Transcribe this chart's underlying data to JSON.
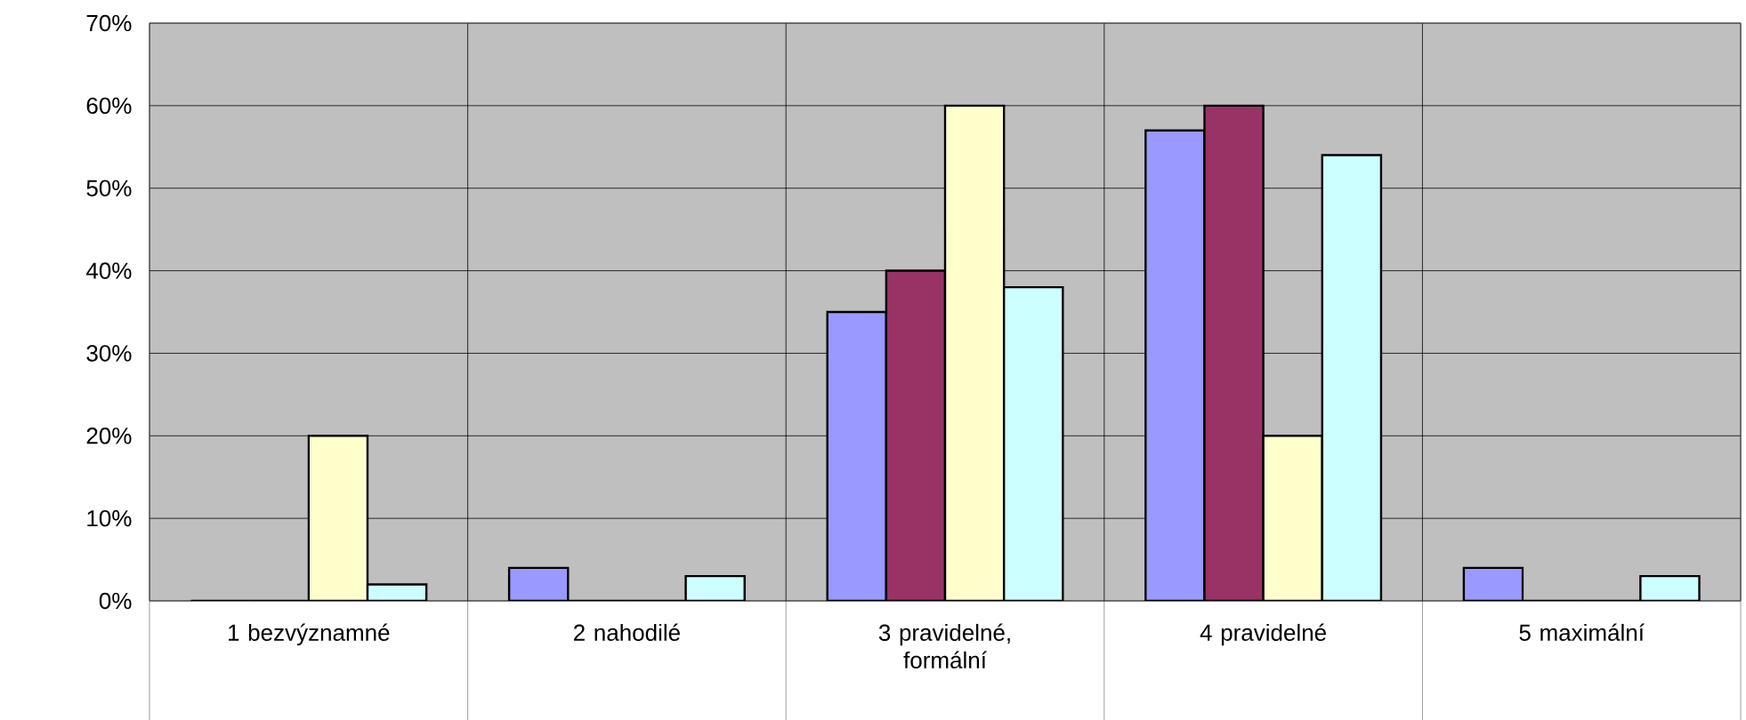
{
  "chart_data": {
    "type": "bar",
    "categories": [
      "1 bezvýznamné",
      "2 nahodilé",
      "3 pravidelné, formální",
      "4 pravidelné",
      "5 maximální"
    ],
    "series": [
      {
        "color": "#9999ff",
        "values": [
          0,
          4,
          35,
          57,
          4
        ]
      },
      {
        "color": "#993366",
        "values": [
          0,
          0,
          40,
          60,
          0
        ]
      },
      {
        "color": "#ffffcc",
        "values": [
          20,
          0,
          60,
          20,
          0
        ]
      },
      {
        "color": "#ccffff",
        "values": [
          2,
          3,
          38,
          54,
          3
        ]
      }
    ],
    "ylim": [
      0,
      70
    ],
    "yticks": [
      {
        "value": 0,
        "label": "0%"
      },
      {
        "value": 10,
        "label": "10%"
      },
      {
        "value": 20,
        "label": "20%"
      },
      {
        "value": 30,
        "label": "30%"
      },
      {
        "value": 40,
        "label": "40%"
      },
      {
        "value": 50,
        "label": "50%"
      },
      {
        "value": 60,
        "label": "60%"
      },
      {
        "value": 70,
        "label": "70%"
      }
    ],
    "grid": true
  }
}
